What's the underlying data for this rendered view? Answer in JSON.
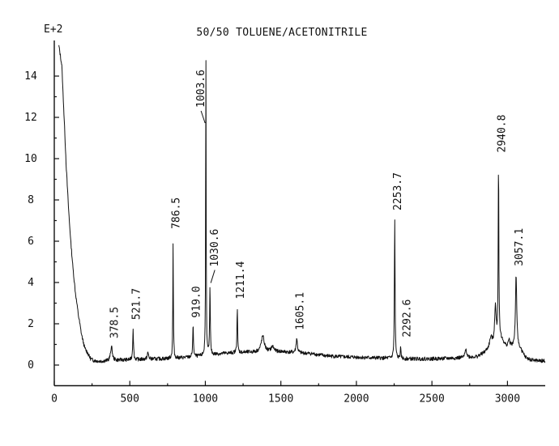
{
  "chart_data": {
    "type": "line",
    "title": "50/50 TOLUENE/ACETONITRILE",
    "y_exponent_label": "E+2",
    "xlabel": "",
    "ylabel": "",
    "xlim": [
      0,
      3250
    ],
    "ylim": [
      -1,
      15.5
    ],
    "x_ticks": [
      0,
      500,
      1000,
      1500,
      2000,
      2500,
      3000
    ],
    "y_ticks": [
      0,
      2,
      4,
      6,
      8,
      10,
      12,
      14
    ],
    "grid": false,
    "legend": "none",
    "series": [
      {
        "baseline": [
          [
            30,
            15.5
          ],
          [
            50,
            14.5
          ],
          [
            65,
            12
          ],
          [
            80,
            9.5
          ],
          [
            95,
            7.5
          ],
          [
            110,
            5.9
          ],
          [
            125,
            4.6
          ],
          [
            140,
            3.5
          ],
          [
            160,
            2.4
          ],
          [
            180,
            1.5
          ],
          [
            200,
            0.85
          ],
          [
            220,
            0.5
          ],
          [
            240,
            0.3
          ],
          [
            260,
            0.22
          ],
          [
            300,
            0.18
          ],
          [
            350,
            0.2
          ],
          [
            400,
            0.22
          ],
          [
            450,
            0.25
          ],
          [
            500,
            0.25
          ],
          [
            600,
            0.28
          ],
          [
            700,
            0.3
          ],
          [
            800,
            0.33
          ],
          [
            900,
            0.38
          ],
          [
            1000,
            0.45
          ],
          [
            1100,
            0.55
          ],
          [
            1200,
            0.6
          ],
          [
            1300,
            0.62
          ],
          [
            1400,
            0.65
          ],
          [
            1500,
            0.65
          ],
          [
            1600,
            0.6
          ],
          [
            1700,
            0.55
          ],
          [
            1800,
            0.45
          ],
          [
            1900,
            0.4
          ],
          [
            2000,
            0.38
          ],
          [
            2100,
            0.35
          ],
          [
            2200,
            0.33
          ],
          [
            2300,
            0.3
          ],
          [
            2400,
            0.3
          ],
          [
            2500,
            0.3
          ],
          [
            2600,
            0.32
          ],
          [
            2700,
            0.35
          ],
          [
            2800,
            0.4
          ],
          [
            2850,
            0.6
          ],
          [
            2900,
            0.9
          ],
          [
            2920,
            1.0
          ],
          [
            2950,
            1.3
          ],
          [
            2990,
            0.9
          ],
          [
            3020,
            0.9
          ],
          [
            3080,
            0.8
          ],
          [
            3120,
            0.35
          ],
          [
            3150,
            0.25
          ],
          [
            3200,
            0.2
          ],
          [
            3250,
            0.2
          ]
        ],
        "peaks": [
          [
            220,
            0.6,
            8
          ],
          [
            378.5,
            0.9,
            7
          ],
          [
            521.7,
            1.8,
            3
          ],
          [
            620,
            0.6,
            5
          ],
          [
            786.5,
            6.2,
            2
          ],
          [
            919.0,
            1.9,
            3
          ],
          [
            1003.6,
            15.5,
            1.8
          ],
          [
            1030.6,
            3.9,
            2.5
          ],
          [
            1211.4,
            2.8,
            2.5
          ],
          [
            1380,
            1.4,
            12
          ],
          [
            1445,
            0.9,
            10
          ],
          [
            1605.1,
            1.3,
            5
          ],
          [
            2253.7,
            7.1,
            2.5
          ],
          [
            2292.6,
            0.8,
            3
          ],
          [
            2725,
            0.8,
            6
          ],
          [
            2890,
            1.3,
            10
          ],
          [
            2920,
            2.8,
            6
          ],
          [
            2940.8,
            9.9,
            2.5
          ],
          [
            3010,
            1.2,
            6
          ],
          [
            3057.1,
            4.4,
            5
          ]
        ]
      }
    ],
    "annotations": [
      {
        "text": "378.5",
        "x": 378.5,
        "y": 0.9
      },
      {
        "text": "521.7",
        "x": 521.7,
        "y": 1.8
      },
      {
        "text": "786.5",
        "x": 786.5,
        "y": 6.2
      },
      {
        "text": "919.0",
        "x": 919.0,
        "y": 1.9
      },
      {
        "text": "1003.6",
        "x": 1003.6,
        "y": 15.5
      },
      {
        "text": "1030.6",
        "x": 1030.6,
        "y": 3.9
      },
      {
        "text": "1211.4",
        "x": 1211.4,
        "y": 2.8
      },
      {
        "text": "1605.1",
        "x": 1605.1,
        "y": 1.3
      },
      {
        "text": "2253.7",
        "x": 2253.7,
        "y": 7.1
      },
      {
        "text": "2292.6",
        "x": 2292.6,
        "y": 0.8
      },
      {
        "text": "2940.8",
        "x": 2940.8,
        "y": 9.9
      },
      {
        "text": "3057.1",
        "x": 3057.1,
        "y": 4.4
      }
    ]
  }
}
